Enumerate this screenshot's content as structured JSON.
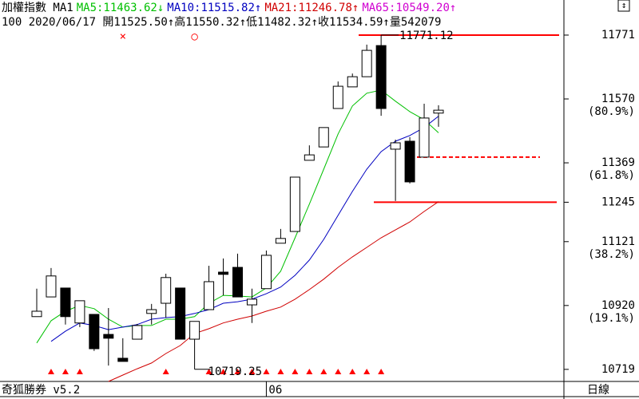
{
  "chart_data": {
    "type": "candlestick",
    "title": "加權指數 MA1",
    "info": "100 2020/06/17 開11525.50↑高11550.32↑低11482.32↑收11534.59↑量542079",
    "footer_left": "奇狐勝券 v5.2",
    "footer_right": "日線",
    "corner_icon": "↕",
    "categories": [
      null,
      null,
      null,
      null,
      null,
      null,
      null,
      null,
      null,
      null,
      null,
      null,
      null,
      null,
      null,
      null,
      "06",
      null,
      null,
      null,
      null,
      null,
      null,
      null,
      null,
      null,
      null,
      null,
      null
    ],
    "open": [
      10885,
      10947,
      10975,
      10865,
      10892,
      10829,
      10754,
      10814,
      10895,
      10927,
      10975,
      10814,
      10907,
      11025,
      11040,
      10922,
      10973,
      11116,
      11153,
      11377,
      11419,
      11540,
      11608,
      11640,
      11738,
      11412,
      11437,
      11387,
      11525.5
    ],
    "high": [
      10973,
      11038,
      10975,
      10935,
      10892,
      10912,
      10817,
      10862,
      10925,
      11020,
      10975,
      10870,
      11045,
      11068,
      11083,
      10973,
      11093,
      11161,
      11324,
      11424,
      11480,
      11625,
      11650,
      11741,
      11771.12,
      11442,
      11450,
      11555,
      11550.32
    ],
    "low": [
      10885,
      10947,
      10860,
      10852,
      10777,
      10731,
      10744,
      10814,
      10860,
      10882,
      10814,
      10719.25,
      10907,
      10952,
      10947,
      10865,
      10973,
      11116,
      11153,
      11377,
      11419,
      11540,
      11608,
      11640,
      11517,
      11249,
      11304,
      11387,
      11482.32
    ],
    "close": [
      10902,
      11013,
      10885,
      10935,
      10784,
      10817,
      10744,
      10857,
      10907,
      11008,
      10814,
      10870,
      10995,
      11018,
      10947,
      10940,
      11078,
      11131,
      11324,
      11394,
      11480,
      11610,
      11640,
      11723,
      11540,
      11432,
      11309,
      11510,
      11534.59
    ],
    "series": [
      {
        "name": "MA5:11463.62↓",
        "color": "#00c000",
        "values": [
          10802,
          10872,
          10902,
          10920,
          10910,
          10877,
          10852,
          10857,
          10857,
          10877,
          10877,
          10885,
          10927,
          10952,
          10950,
          10947,
          10975,
          11028,
          11133,
          11239,
          11349,
          11460,
          11548,
          11588,
          11598,
          11563,
          11530,
          11505,
          11463.62
        ]
      },
      {
        "name": "MA10:11515.82↑",
        "color": "#0000c0",
        "values": [
          null,
          10807,
          10839,
          10865,
          10857,
          10844,
          10852,
          10860,
          10877,
          10882,
          10885,
          10895,
          10907,
          10927,
          10932,
          10940,
          10957,
          10978,
          11015,
          11063,
          11128,
          11204,
          11279,
          11349,
          11404,
          11437,
          11455,
          11480,
          11515.82
        ]
      },
      {
        "name": "MA21:11246.78↑",
        "color": "#d00000",
        "values": [
          null,
          null,
          null,
          null,
          null,
          10681,
          10701,
          10721,
          10739,
          10769,
          10794,
          10832,
          10847,
          10865,
          10877,
          10887,
          10902,
          10915,
          10940,
          10970,
          11003,
          11040,
          11073,
          11103,
          11133,
          11158,
          11183,
          11216,
          11246.78
        ]
      }
    ],
    "extra_legend": {
      "name": "MA65:10549.20↑",
      "color": "#d000d0"
    },
    "ylim": [
      10681,
      11786
    ],
    "yticks": [
      11771,
      11570,
      11369,
      11245,
      11121,
      10920,
      10719
    ],
    "retracements": [
      {
        "value": 11570,
        "label": "(80.9%)"
      },
      {
        "value": 11369,
        "label": "(61.8%)"
      },
      {
        "value": 11121,
        "label": "(38.2%)"
      },
      {
        "value": 10920,
        "label": "(19.1%)"
      }
    ],
    "levels": [
      {
        "value": 11771,
        "style": "solid"
      },
      {
        "value": 11387,
        "style": "dashed"
      },
      {
        "value": 11245,
        "style": "solid"
      }
    ],
    "level_color": "#ff0000",
    "annotations": [
      {
        "text": "11771.12",
        "candle": 24
      },
      {
        "text": "10719.25",
        "candle": 11
      }
    ],
    "markers": [
      {
        "symbol": "×",
        "candle": 6
      },
      {
        "symbol": "○",
        "candle": 11
      }
    ],
    "signal_candles": [
      1,
      2,
      3,
      9,
      12,
      13,
      14,
      15,
      16,
      17,
      18,
      19,
      20,
      21,
      22,
      23,
      24
    ],
    "up_color": "#ffffff",
    "down_color": "#000000"
  }
}
